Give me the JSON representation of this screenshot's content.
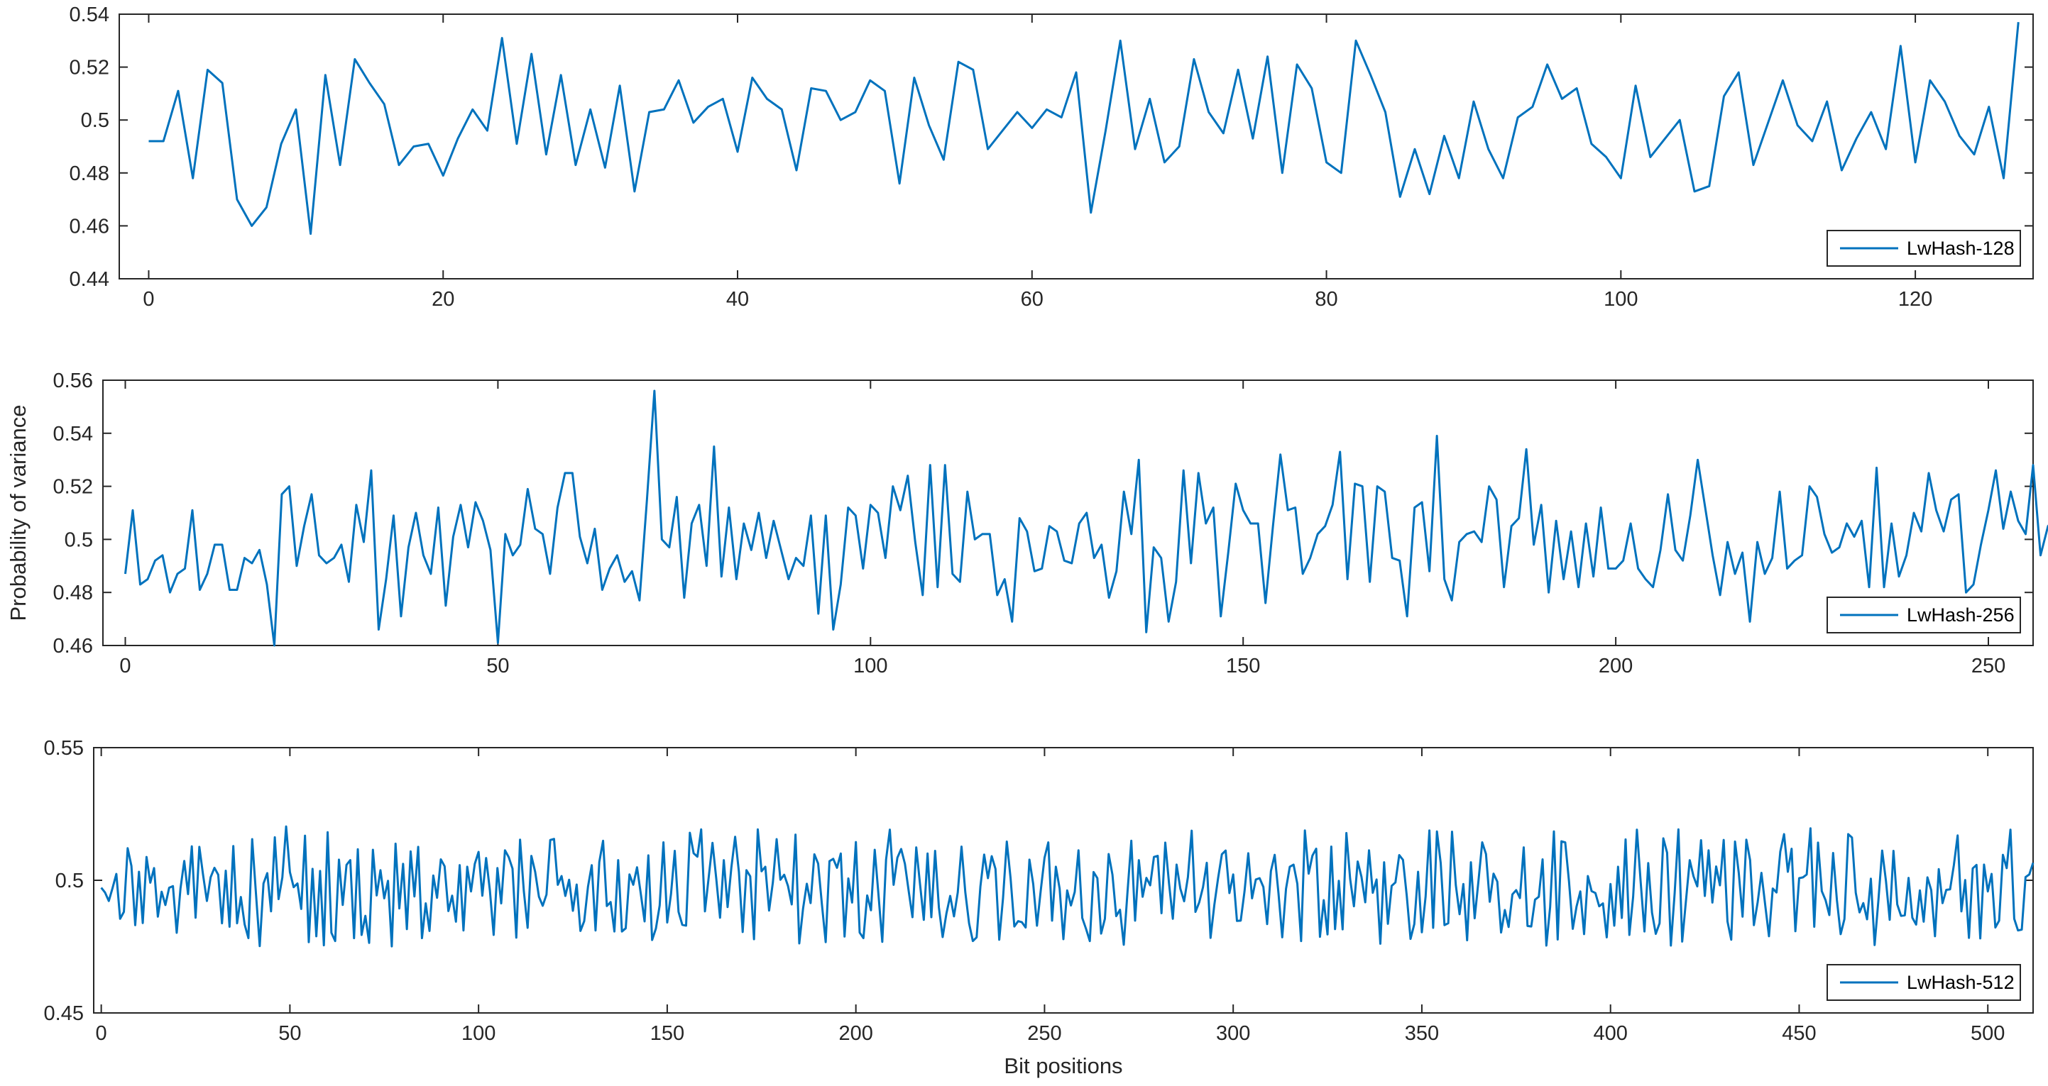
{
  "chart_data": [
    {
      "type": "line",
      "xlim": [
        -2,
        128
      ],
      "ylim": [
        0.44,
        0.54
      ],
      "xticks": [
        0,
        20,
        40,
        60,
        80,
        100,
        120
      ],
      "yticks": [
        0.44,
        0.46,
        0.48,
        0.5,
        0.52,
        0.54
      ],
      "ytick_labels": [
        "0.44",
        "0.46",
        "0.48",
        "0.5",
        "0.52",
        "0.54"
      ],
      "legend": "bottom-right",
      "color": "#0072BD",
      "series": [
        {
          "name": "LwHash-128",
          "x_start": 0,
          "y": [
            0.492,
            0.492,
            0.511,
            0.478,
            0.519,
            0.514,
            0.47,
            0.46,
            0.467,
            0.491,
            0.504,
            0.457,
            0.517,
            0.483,
            0.523,
            0.514,
            0.506,
            0.483,
            0.49,
            0.491,
            0.479,
            0.493,
            0.504,
            0.496,
            0.531,
            0.491,
            0.525,
            0.487,
            0.517,
            0.483,
            0.504,
            0.482,
            0.513,
            0.473,
            0.503,
            0.504,
            0.515,
            0.499,
            0.505,
            0.508,
            0.488,
            0.516,
            0.508,
            0.504,
            0.481,
            0.512,
            0.511,
            0.5,
            0.503,
            0.515,
            0.511,
            0.476,
            0.516,
            0.498,
            0.485,
            0.522,
            0.519,
            0.489,
            0.496,
            0.503,
            0.497,
            0.504,
            0.501,
            0.518,
            0.465,
            0.496,
            0.53,
            0.489,
            0.508,
            0.484,
            0.49,
            0.523,
            0.503,
            0.495,
            0.519,
            0.493,
            0.524,
            0.48,
            0.521,
            0.512,
            0.484,
            0.48,
            0.53,
            0.517,
            0.503,
            0.471,
            0.489,
            0.472,
            0.494,
            0.478,
            0.507,
            0.489,
            0.478,
            0.501,
            0.505,
            0.521,
            0.508,
            0.512,
            0.491,
            0.486,
            0.478,
            0.513,
            0.486,
            0.493,
            0.5,
            0.473,
            0.475,
            0.509,
            0.518,
            0.483,
            0.499,
            0.515,
            0.498,
            0.492,
            0.507,
            0.481,
            0.493,
            0.503,
            0.489,
            0.528,
            0.484,
            0.515,
            0.507,
            0.494,
            0.487,
            0.505,
            0.478,
            0.537
          ]
        }
      ]
    },
    {
      "type": "line",
      "xlim": [
        -3,
        256
      ],
      "ylim": [
        0.46,
        0.56
      ],
      "xticks": [
        0,
        50,
        100,
        150,
        200,
        250
      ],
      "yticks": [
        0.46,
        0.48,
        0.5,
        0.52,
        0.54,
        0.56
      ],
      "ytick_labels": [
        "0.46",
        "0.48",
        "0.5",
        "0.52",
        "0.54",
        "0.56"
      ],
      "ylabel": "Probability of variance",
      "legend": "bottom-right",
      "color": "#0072BD",
      "series": [
        {
          "name": "LwHash-256",
          "x_start": 0,
          "y": [
            0.487,
            0.511,
            0.483,
            0.485,
            0.492,
            0.494,
            0.48,
            0.487,
            0.489,
            0.511,
            0.481,
            0.487,
            0.498,
            0.498,
            0.481,
            0.481,
            0.493,
            0.491,
            0.496,
            0.483,
            0.46,
            0.517,
            0.52,
            0.49,
            0.505,
            0.517,
            0.494,
            0.491,
            0.493,
            0.498,
            0.484,
            0.513,
            0.499,
            0.526,
            0.466,
            0.485,
            0.509,
            0.471,
            0.497,
            0.51,
            0.494,
            0.487,
            0.512,
            0.475,
            0.501,
            0.513,
            0.497,
            0.514,
            0.507,
            0.496,
            0.461,
            0.502,
            0.494,
            0.498,
            0.519,
            0.504,
            0.502,
            0.487,
            0.512,
            0.525,
            0.525,
            0.501,
            0.491,
            0.504,
            0.481,
            0.489,
            0.494,
            0.484,
            0.488,
            0.477,
            0.515,
            0.556,
            0.5,
            0.497,
            0.516,
            0.478,
            0.506,
            0.513,
            0.49,
            0.535,
            0.486,
            0.512,
            0.485,
            0.506,
            0.496,
            0.51,
            0.493,
            0.507,
            0.496,
            0.485,
            0.493,
            0.49,
            0.509,
            0.472,
            0.509,
            0.466,
            0.483,
            0.512,
            0.509,
            0.489,
            0.513,
            0.51,
            0.493,
            0.52,
            0.511,
            0.524,
            0.499,
            0.479,
            0.528,
            0.482,
            0.528,
            0.487,
            0.484,
            0.518,
            0.5,
            0.502,
            0.502,
            0.479,
            0.485,
            0.469,
            0.508,
            0.503,
            0.488,
            0.489,
            0.505,
            0.503,
            0.492,
            0.491,
            0.506,
            0.51,
            0.493,
            0.498,
            0.478,
            0.488,
            0.518,
            0.502,
            0.53,
            0.465,
            0.497,
            0.493,
            0.469,
            0.484,
            0.526,
            0.491,
            0.525,
            0.506,
            0.512,
            0.471,
            0.495,
            0.521,
            0.511,
            0.506,
            0.506,
            0.476,
            0.505,
            0.532,
            0.511,
            0.512,
            0.487,
            0.493,
            0.502,
            0.505,
            0.513,
            0.533,
            0.485,
            0.521,
            0.52,
            0.484,
            0.52,
            0.518,
            0.493,
            0.492,
            0.471,
            0.512,
            0.514,
            0.488,
            0.539,
            0.485,
            0.477,
            0.499,
            0.502,
            0.503,
            0.499,
            0.52,
            0.515,
            0.482,
            0.505,
            0.508,
            0.534,
            0.498,
            0.513,
            0.48,
            0.507,
            0.485,
            0.503,
            0.482,
            0.506,
            0.486,
            0.512,
            0.489,
            0.489,
            0.492,
            0.506,
            0.489,
            0.485,
            0.482,
            0.496,
            0.517,
            0.496,
            0.492,
            0.509,
            0.53,
            0.512,
            0.494,
            0.479,
            0.499,
            0.487,
            0.495,
            0.469,
            0.499,
            0.487,
            0.493,
            0.518,
            0.489,
            0.492,
            0.494,
            0.52,
            0.516,
            0.502,
            0.495,
            0.497,
            0.506,
            0.501,
            0.507,
            0.482,
            0.527,
            0.482,
            0.506,
            0.486,
            0.494,
            0.51,
            0.503,
            0.525,
            0.511,
            0.503,
            0.515,
            0.517,
            0.48,
            0.483,
            0.498,
            0.511,
            0.526,
            0.504,
            0.518,
            0.507,
            0.502,
            0.528,
            0.494,
            0.505,
            0.508
          ]
        }
      ]
    },
    {
      "type": "line",
      "xlim": [
        -2,
        512
      ],
      "ylim": [
        0.45,
        0.55
      ],
      "xticks": [
        0,
        50,
        100,
        150,
        200,
        250,
        300,
        350,
        400,
        450,
        500
      ],
      "yticks": [
        0.45,
        0.5,
        0.55
      ],
      "ytick_labels": [
        "0.45",
        "0.5",
        "0.55"
      ],
      "xlabel": "Bit positions",
      "legend": "bottom-right",
      "color": "#0072BD",
      "series": [
        {
          "name": "LwHash-512",
          "x_start": 0,
          "y": [
            0.4972,
            0.4954,
            0.4922,
            0.4971,
            0.5024,
            0.4855,
            0.4881,
            0.5121,
            0.5054,
            0.4831,
            0.5032,
            0.4839,
            0.5088,
            0.4991,
            0.5046,
            0.4863,
            0.4957,
            0.4907,
            0.4972,
            0.4978,
            0.4802,
            0.4969,
            0.5073,
            0.4948,
            0.5128,
            0.4859,
            0.5126,
            0.5019,
            0.4922,
            0.5012,
            0.5047,
            0.5021,
            0.4838,
            0.5036,
            0.4825,
            0.5129,
            0.4838,
            0.4937,
            0.4834,
            0.4782,
            0.5155,
            0.4951,
            0.4752,
            0.4988,
            0.5027,
            0.4883,
            0.5162,
            0.4929,
            0.5011,
            0.5203,
            0.5031,
            0.4974,
            0.4988,
            0.4892,
            0.5168,
            0.4767,
            0.5043,
            0.4789,
            0.5035,
            0.4755,
            0.5181,
            0.4802,
            0.4771,
            0.5078,
            0.4907,
            0.5058,
            0.5076,
            0.4782,
            0.5117,
            0.4794,
            0.4866,
            0.4764,
            0.5115,
            0.4943,
            0.5038,
            0.4932,
            0.4998,
            0.4751,
            0.5138,
            0.4894,
            0.5062,
            0.4816,
            0.5109,
            0.4939,
            0.5126,
            0.4782,
            0.4913,
            0.4809,
            0.5018,
            0.4934,
            0.5079,
            0.5053,
            0.4884,
            0.4942,
            0.4844,
            0.5057,
            0.4811,
            0.5051,
            0.4958,
            0.5062,
            0.5107,
            0.4942,
            0.5084,
            0.4962,
            0.4794,
            0.5046,
            0.4913,
            0.5113,
            0.5087,
            0.5044,
            0.4784,
            0.5153,
            0.4959,
            0.4821,
            0.5092,
            0.5032,
            0.4938,
            0.4904,
            0.4946,
            0.5152,
            0.5156,
            0.4983,
            0.5016,
            0.4941,
            0.5002,
            0.4885,
            0.4984,
            0.4809,
            0.4846,
            0.4976,
            0.5057,
            0.4811,
            0.5069,
            0.5149,
            0.4903,
            0.4918,
            0.4807,
            0.5076,
            0.4807,
            0.4819,
            0.5022,
            0.4983,
            0.5049,
            0.4949,
            0.4845,
            0.5094,
            0.4775,
            0.4818,
            0.4905,
            0.5143,
            0.4841,
            0.4948,
            0.5111,
            0.4881,
            0.4832,
            0.4829,
            0.5179,
            0.5102,
            0.5089,
            0.5192,
            0.4883,
            0.5012,
            0.5141,
            0.5006,
            0.4859,
            0.5076,
            0.4899,
            0.5048,
            0.5164,
            0.5032,
            0.4805,
            0.5038,
            0.5015,
            0.4778,
            0.5192,
            0.5034,
            0.5051,
            0.4886,
            0.4992,
            0.5155,
            0.5002,
            0.5021,
            0.4979,
            0.4909,
            0.5172,
            0.4762,
            0.4893,
            0.4987,
            0.4914,
            0.5098,
            0.5063,
            0.4909,
            0.4767,
            0.5072,
            0.5081,
            0.5047,
            0.5101,
            0.4788,
            0.5007,
            0.4916,
            0.5144,
            0.4803,
            0.4782,
            0.4943,
            0.4887,
            0.5115,
            0.4944,
            0.4768,
            0.5078,
            0.5191,
            0.4983,
            0.5085,
            0.5118,
            0.5062,
            0.4959,
            0.4861,
            0.5124,
            0.4986,
            0.4851,
            0.5101,
            0.4861,
            0.5111,
            0.4898,
            0.4786,
            0.4875,
            0.4941,
            0.4864,
            0.4954,
            0.5127,
            0.4955,
            0.4838,
            0.4771,
            0.4785,
            0.4976,
            0.5097,
            0.5008,
            0.5091,
            0.5043,
            0.4776,
            0.4933,
            0.5146,
            0.5008,
            0.4826,
            0.4846,
            0.4842,
            0.4822,
            0.5078,
            0.4986,
            0.4829,
            0.4962,
            0.5085,
            0.5143,
            0.4848,
            0.5051,
            0.4969,
            0.4778,
            0.4962,
            0.4905,
            0.4956,
            0.5113,
            0.4858,
            0.4817,
            0.4771,
            0.5031,
            0.5008,
            0.4799,
            0.4855,
            0.5099,
            0.5021,
            0.4865,
            0.4889,
            0.4757,
            0.4958,
            0.5149,
            0.4848,
            0.5076,
            0.4938,
            0.5009,
            0.4981,
            0.5088,
            0.5092,
            0.4876,
            0.5142,
            0.4988,
            0.4855,
            0.5059,
            0.4968,
            0.4921,
            0.5012,
            0.5187,
            0.4881,
            0.4917,
            0.4974,
            0.5066,
            0.4783,
            0.4907,
            0.5008,
            0.5098,
            0.5112,
            0.4952,
            0.5022,
            0.4847,
            0.4848,
            0.4958,
            0.5102,
            0.4932,
            0.5003,
            0.5008,
            0.4975,
            0.4835,
            0.5035,
            0.5096,
            0.4952,
            0.4785,
            0.4968,
            0.5051,
            0.5059,
            0.4987,
            0.4771,
            0.5188,
            0.5025,
            0.5093,
            0.5119,
            0.4787,
            0.4925,
            0.4796,
            0.5127,
            0.4816,
            0.4998,
            0.4815,
            0.5178,
            0.5005,
            0.4902,
            0.5071,
            0.5013,
            0.4917,
            0.5113,
            0.4953,
            0.5003,
            0.4761,
            0.5068,
            0.4836,
            0.4979,
            0.4992,
            0.5095,
            0.5077,
            0.4942,
            0.4779,
            0.4835,
            0.5032,
            0.4804,
            0.4939,
            0.5188,
            0.4821,
            0.5184,
            0.5065,
            0.4831,
            0.4838,
            0.5183,
            0.4982,
            0.4872,
            0.4986,
            0.4774,
            0.5068,
            0.4857,
            0.4997,
            0.5143,
            0.5099,
            0.4919,
            0.5025,
            0.4995,
            0.4803,
            0.4888,
            0.4824,
            0.4947,
            0.4963,
            0.4933,
            0.5124,
            0.4828,
            0.4826,
            0.4927,
            0.4938,
            0.5079,
            0.4754,
            0.4899,
            0.5184,
            0.4777,
            0.5147,
            0.5143,
            0.4996,
            0.4817,
            0.4901,
            0.4958,
            0.4797,
            0.5016,
            0.4959,
            0.4952,
            0.4902,
            0.4913,
            0.4785,
            0.4986,
            0.4829,
            0.5051,
            0.4858,
            0.5154,
            0.4794,
            0.4938,
            0.5191,
            0.4993,
            0.4807,
            0.5065,
            0.4878,
            0.4798,
            0.4838,
            0.5158,
            0.5104,
            0.4754,
            0.4951,
            0.5192,
            0.4769,
            0.4923,
            0.5076,
            0.5015,
            0.4977,
            0.5151,
            0.4941,
            0.5113,
            0.4916,
            0.5052,
            0.4981,
            0.5152,
            0.4845,
            0.4776,
            0.5146,
            0.5027,
            0.4863,
            0.5153,
            0.5076,
            0.4831,
            0.4917,
            0.5028,
            0.4907,
            0.4789,
            0.4969,
            0.4954,
            0.5108,
            0.5174,
            0.5032,
            0.5119,
            0.4808,
            0.5008,
            0.5011,
            0.5022,
            0.5196,
            0.4825,
            0.5142,
            0.4959,
            0.4925,
            0.4869,
            0.5103,
            0.4926,
            0.4797,
            0.4854,
            0.5174,
            0.5161,
            0.4953,
            0.4879,
            0.4914,
            0.4853,
            0.5006,
            0.4756,
            0.4924,
            0.5112,
            0.4998,
            0.4851,
            0.5111,
            0.4909,
            0.4866,
            0.4868,
            0.5009,
            0.4859,
            0.4833,
            0.4962,
            0.4844,
            0.5011,
            0.4963,
            0.4789,
            0.5042,
            0.4914,
            0.4964,
            0.4966,
            0.5057,
            0.5169,
            0.4883,
            0.5001,
            0.4783,
            0.5045,
            0.5058,
            0.4781,
            0.5059,
            0.4958,
            0.5024,
            0.4822,
            0.4848,
            0.5096,
            0.5046,
            0.5191,
            0.4855,
            0.4811,
            0.4814,
            0.5012,
            0.5022,
            0.5066
          ]
        }
      ]
    }
  ]
}
